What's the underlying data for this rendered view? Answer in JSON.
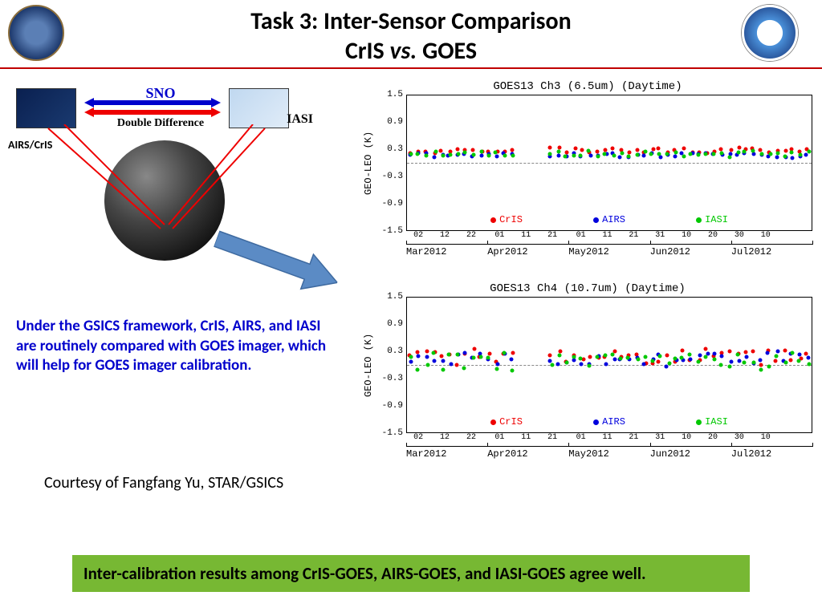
{
  "title": {
    "line1": "Task 3: Inter-Sensor Comparison",
    "line2_a": "CrIS ",
    "line2_vs": "vs.",
    "line2_b": " GOES"
  },
  "diagram": {
    "sno": "SNO",
    "dd": "Double Difference",
    "airs": "AIRS/CrIS",
    "iasi": "IASI"
  },
  "explain": "Under the GSICS framework, CrIS, AIRS, and IASI are routinely compared with GOES imager, which will help for GOES imager calibration.",
  "courtesy": "Courtesy of Fangfang Yu, STAR/GSICS",
  "greenbox": "Inter-calibration results among CrIS-GOES, AIRS-GOES, and IASI-GOES agree well.",
  "colors": {
    "cris": "#ee0000",
    "airs": "#0000dd",
    "iasi": "#00c800",
    "blue_text": "#0000cc",
    "green_box": "#77b833",
    "red_rule": "#c00000",
    "arrow_fill": "#5b8bc5",
    "arrow_stroke": "#3e6aa0"
  },
  "charts": {
    "ylabel": "GEO-LEO (K)",
    "ylim": [
      -1.5,
      1.5
    ],
    "yticks": [
      -1.5,
      -0.9,
      -0.3,
      0.3,
      0.9,
      1.5
    ],
    "xticks_days": [
      "02",
      "12",
      "22",
      "01",
      "11",
      "21",
      "01",
      "11",
      "21",
      "31",
      "10",
      "20",
      "30",
      "10"
    ],
    "xtick_positions_pct": [
      3,
      9.5,
      16,
      23,
      29.5,
      36,
      43,
      49.5,
      56,
      62.5,
      69,
      75.5,
      82,
      88.5
    ],
    "xmonths": [
      "Mar2012",
      "Apr2012",
      "May2012",
      "Jun2012",
      "Jul2012"
    ],
    "xmonth_positions_pct": [
      0,
      20,
      40,
      60,
      80
    ],
    "legend": [
      "CrIS",
      "AIRS",
      "IASI"
    ],
    "chart1": {
      "title": "GOES13 Ch3 (6.5um) (Daytime)",
      "mean": {
        "cris": 0.28,
        "airs": 0.17,
        "iasi": 0.2
      },
      "spread": {
        "cris": 0.06,
        "airs": 0.06,
        "iasi": 0.07
      }
    },
    "chart2": {
      "title": "GOES13 Ch4 (10.7um) (Daytime)",
      "mean": {
        "cris": 0.18,
        "airs": 0.13,
        "iasi": 0.08
      },
      "spread": {
        "cris": 0.18,
        "airs": 0.18,
        "iasi": 0.2
      }
    }
  }
}
